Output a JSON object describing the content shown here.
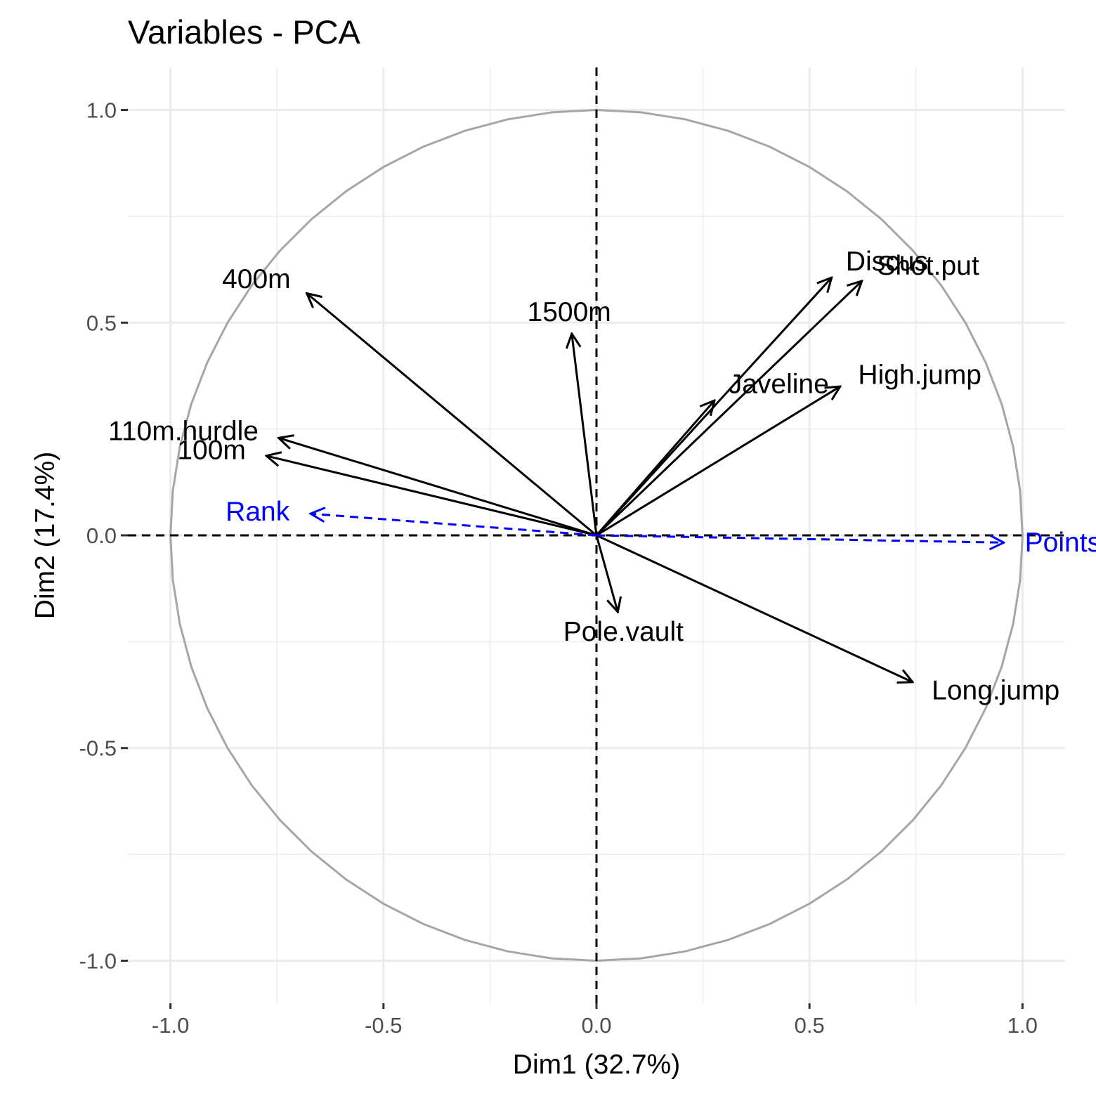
{
  "chart_data": {
    "type": "scatter",
    "title": "Variables - PCA",
    "xlabel": "Dim1 (32.7%)",
    "ylabel": "Dim2 (17.4%)",
    "xlim": [
      -1.1,
      1.1
    ],
    "ylim": [
      -1.1,
      1.1
    ],
    "x_ticks": [
      -1.0,
      -0.5,
      0.0,
      0.5,
      1.0
    ],
    "y_ticks": [
      -1.0,
      -0.5,
      0.0,
      0.5,
      1.0
    ],
    "x_tick_labels": [
      "-1.0",
      "-0.5",
      "0.0",
      "0.5",
      "1.0"
    ],
    "y_tick_labels": [
      "-1.0",
      "-0.5",
      "0.0",
      "0.5",
      "1.0"
    ],
    "grid": true,
    "correlation_circle": true,
    "active_color": "#000000",
    "supplementary_color": "#0000ff",
    "variables": [
      {
        "name": "100m",
        "x": -0.775,
        "y": 0.187,
        "supplementary": false
      },
      {
        "name": "Long.jump",
        "x": 0.742,
        "y": -0.345,
        "supplementary": false
      },
      {
        "name": "Shot.put",
        "x": 0.623,
        "y": 0.598,
        "supplementary": false
      },
      {
        "name": "High.jump",
        "x": 0.572,
        "y": 0.35,
        "supplementary": false
      },
      {
        "name": "400m",
        "x": -0.68,
        "y": 0.569,
        "supplementary": false
      },
      {
        "name": "110m.hurdle",
        "x": -0.746,
        "y": 0.229,
        "supplementary": false
      },
      {
        "name": "Discus",
        "x": 0.552,
        "y": 0.606,
        "supplementary": false
      },
      {
        "name": "Pole.vault",
        "x": 0.05,
        "y": -0.18,
        "supplementary": false
      },
      {
        "name": "Javeline",
        "x": 0.277,
        "y": 0.317,
        "supplementary": false
      },
      {
        "name": "1500m",
        "x": -0.058,
        "y": 0.474,
        "supplementary": false
      },
      {
        "name": "Rank",
        "x": -0.671,
        "y": 0.051,
        "supplementary": true
      },
      {
        "name": "Points",
        "x": 0.956,
        "y": -0.017,
        "supplementary": true
      }
    ]
  }
}
